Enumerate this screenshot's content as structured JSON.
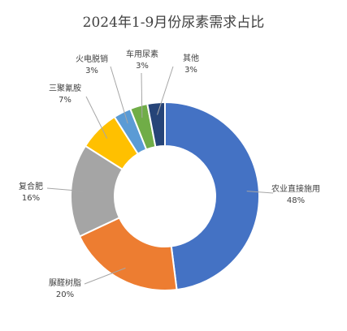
{
  "chart_data": {
    "type": "pie",
    "donut": true,
    "title": "2024年1-9月份尿素需求占比",
    "categories": [
      "农业直接施用",
      "脲醛树脂",
      "复合肥",
      "三聚氰胺",
      "火电脱销",
      "车用尿素",
      "其他"
    ],
    "values": [
      48,
      20,
      16,
      7,
      3,
      3,
      3
    ],
    "value_labels": [
      "48%",
      "20%",
      "16%",
      "7%",
      "3%",
      "3%",
      "3%"
    ],
    "colors": [
      "#4472C4",
      "#ED7D31",
      "#A5A5A5",
      "#FFC000",
      "#5B9BD5",
      "#70AD47",
      "#264478"
    ],
    "legend": "none",
    "start_angle_deg": 0,
    "direction": "clockwise"
  }
}
